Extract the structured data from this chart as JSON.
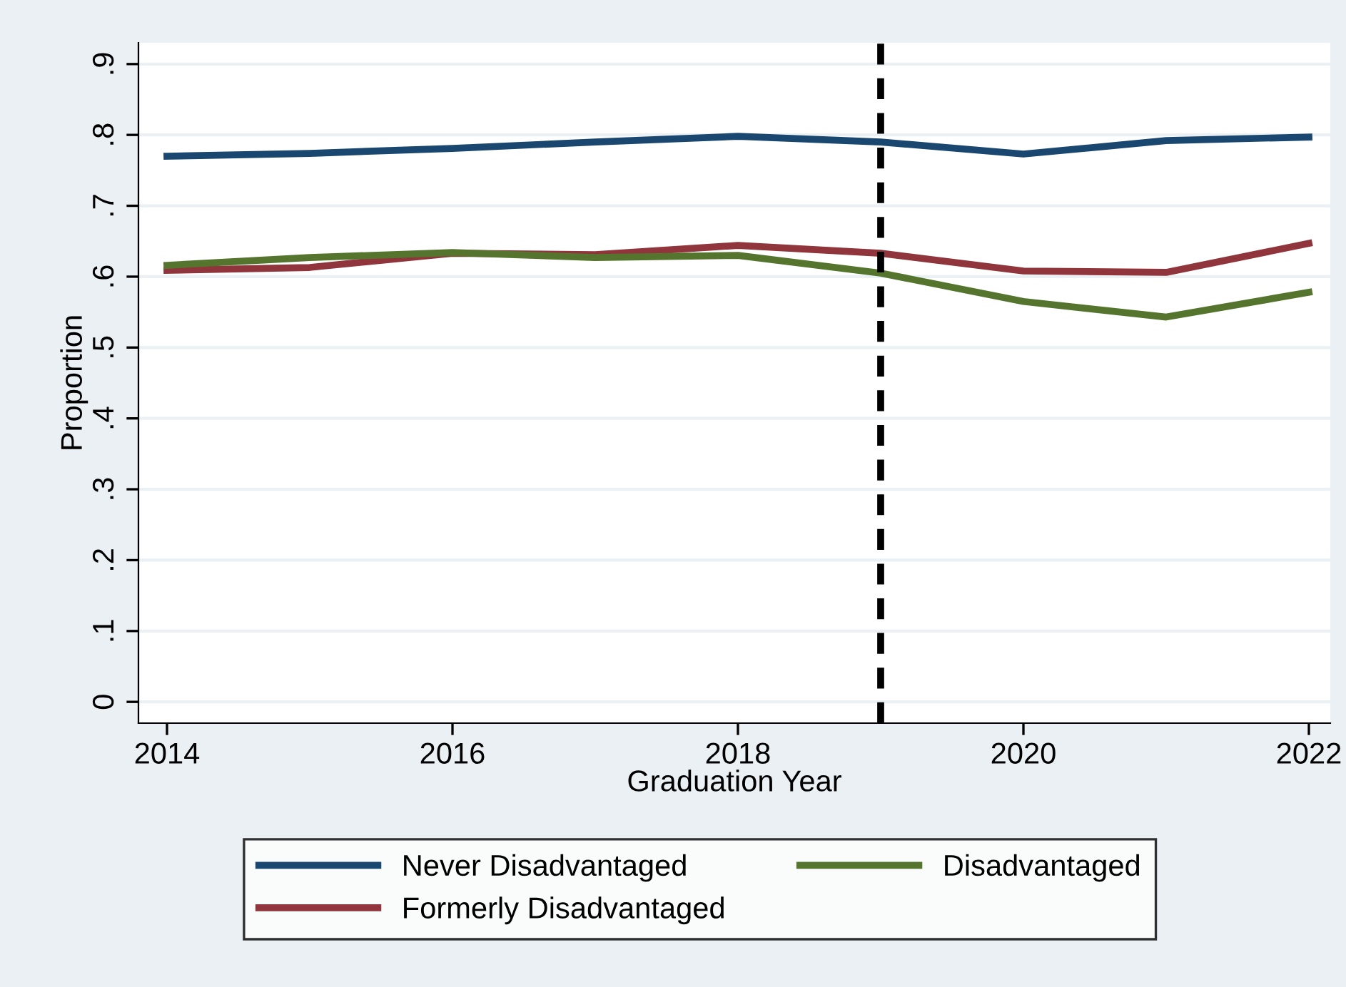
{
  "chart_data": {
    "type": "line",
    "xlabel": "Graduation Year",
    "ylabel": "Proportion",
    "x": [
      2014,
      2015,
      2016,
      2017,
      2018,
      2019,
      2020,
      2021,
      2022
    ],
    "series": [
      {
        "name": "Never Disadvantaged",
        "color": "#1a476f",
        "values": [
          0.77,
          0.774,
          0.781,
          0.79,
          0.798,
          0.79,
          0.773,
          0.792,
          0.797
        ]
      },
      {
        "name": "Formerly Disadvantaged",
        "color": "#90353b",
        "values": [
          0.609,
          0.613,
          0.633,
          0.631,
          0.644,
          0.633,
          0.608,
          0.606,
          0.647
        ]
      },
      {
        "name": "Disadvantaged",
        "color": "#55752f",
        "values": [
          0.616,
          0.627,
          0.634,
          0.627,
          0.63,
          0.605,
          0.565,
          0.543,
          0.578
        ]
      }
    ],
    "xlim": [
      2013.8,
      2022.15
    ],
    "xticks": [
      2014,
      2016,
      2018,
      2020,
      2022
    ],
    "ylim": [
      -0.03,
      0.93
    ],
    "yticks": [
      {
        "value": 0,
        "label": "0"
      },
      {
        "value": 0.1,
        "label": ".1"
      },
      {
        "value": 0.2,
        "label": ".2"
      },
      {
        "value": 0.3,
        "label": ".3"
      },
      {
        "value": 0.4,
        "label": ".4"
      },
      {
        "value": 0.5,
        "label": ".5"
      },
      {
        "value": 0.6,
        "label": ".6"
      },
      {
        "value": 0.7,
        "label": ".7"
      },
      {
        "value": 0.8,
        "label": ".8"
      },
      {
        "value": 0.9,
        "label": ".9"
      }
    ],
    "ref_lines": [
      {
        "axis": "x",
        "value": 2019,
        "label": null,
        "color": "#000000",
        "line_style": "dashed"
      }
    ],
    "grid": "y",
    "legend": "bottom",
    "marker": "none",
    "line_style": "solid"
  }
}
